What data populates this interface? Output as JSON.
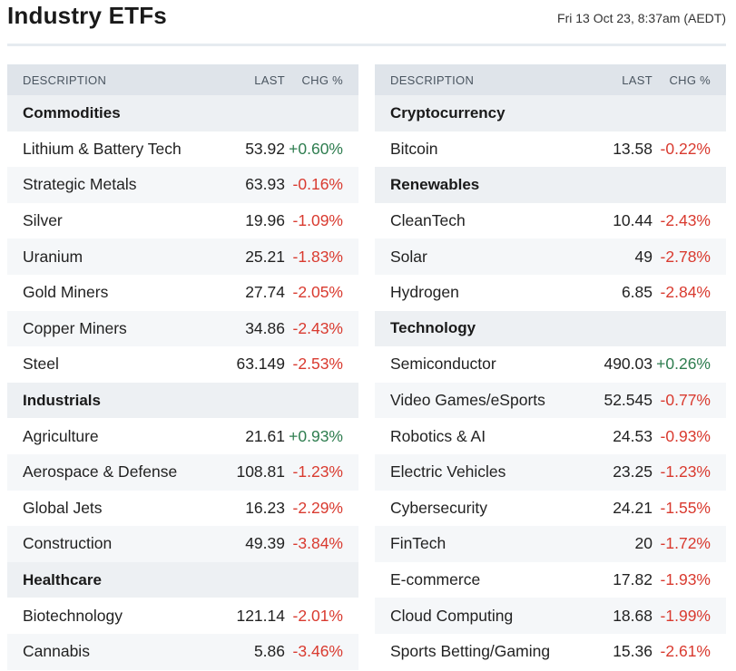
{
  "header": {
    "title": "Industry ETFs",
    "timestamp": "Fri 13 Oct 23, 8:37am (AEDT)"
  },
  "columns": {
    "description": "DESCRIPTION",
    "last": "LAST",
    "change": "CHG %"
  },
  "colors": {
    "positive": "#2e7d4f",
    "negative": "#d93a2f",
    "header_bg": "#dfe4ea"
  },
  "left_table": [
    {
      "section": "Commodities",
      "rows": [
        {
          "name": "Lithium & Battery Tech",
          "last": "53.92",
          "chg": "+0.60%"
        },
        {
          "name": "Strategic Metals",
          "last": "63.93",
          "chg": "-0.16%"
        },
        {
          "name": "Silver",
          "last": "19.96",
          "chg": "-1.09%"
        },
        {
          "name": "Uranium",
          "last": "25.21",
          "chg": "-1.83%"
        },
        {
          "name": "Gold Miners",
          "last": "27.74",
          "chg": "-2.05%"
        },
        {
          "name": "Copper Miners",
          "last": "34.86",
          "chg": "-2.43%"
        },
        {
          "name": "Steel",
          "last": "63.149",
          "chg": "-2.53%"
        }
      ]
    },
    {
      "section": "Industrials",
      "rows": [
        {
          "name": "Agriculture",
          "last": "21.61",
          "chg": "+0.93%"
        },
        {
          "name": "Aerospace & Defense",
          "last": "108.81",
          "chg": "-1.23%"
        },
        {
          "name": "Global Jets",
          "last": "16.23",
          "chg": "-2.29%"
        },
        {
          "name": "Construction",
          "last": "49.39",
          "chg": "-3.84%"
        }
      ]
    },
    {
      "section": "Healthcare",
      "rows": [
        {
          "name": "Biotechnology",
          "last": "121.14",
          "chg": "-2.01%"
        },
        {
          "name": "Cannabis",
          "last": "5.86",
          "chg": "-3.46%"
        }
      ]
    }
  ],
  "right_table": [
    {
      "section": "Cryptocurrency",
      "rows": [
        {
          "name": "Bitcoin",
          "last": "13.58",
          "chg": "-0.22%"
        }
      ]
    },
    {
      "section": "Renewables",
      "rows": [
        {
          "name": "CleanTech",
          "last": "10.44",
          "chg": "-2.43%"
        },
        {
          "name": "Solar",
          "last": "49",
          "chg": "-2.78%"
        },
        {
          "name": "Hydrogen",
          "last": "6.85",
          "chg": "-2.84%"
        }
      ]
    },
    {
      "section": "Technology",
      "rows": [
        {
          "name": "Semiconductor",
          "last": "490.03",
          "chg": "+0.26%"
        },
        {
          "name": "Video Games/eSports",
          "last": "52.545",
          "chg": "-0.77%"
        },
        {
          "name": "Robotics & AI",
          "last": "24.53",
          "chg": "-0.93%"
        },
        {
          "name": "Electric Vehicles",
          "last": "23.25",
          "chg": "-1.23%"
        },
        {
          "name": "Cybersecurity",
          "last": "24.21",
          "chg": "-1.55%"
        },
        {
          "name": "FinTech",
          "last": "20",
          "chg": "-1.72%"
        },
        {
          "name": "E-commerce",
          "last": "17.82",
          "chg": "-1.93%"
        },
        {
          "name": "Cloud Computing",
          "last": "18.68",
          "chg": "-1.99%"
        },
        {
          "name": "Sports Betting/Gaming",
          "last": "15.36",
          "chg": "-2.61%"
        }
      ]
    }
  ]
}
